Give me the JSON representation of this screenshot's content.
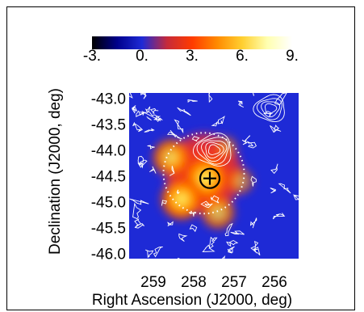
{
  "chart_data": {
    "type": "heatmap",
    "title": "",
    "colorbar": {
      "ticks": [
        "-3.",
        "0.",
        "3.",
        "6.",
        "9."
      ],
      "range": [
        -3,
        9
      ],
      "colors": [
        "#000000",
        "#00008b",
        "#1e2ad6",
        "#c62a3a",
        "#ff3b00",
        "#ff8a00",
        "#ffcf30",
        "#ffffb0",
        "#ffffff"
      ]
    },
    "xlabel": "Right Ascension (J2000, deg)",
    "ylabel": "Declination (J2000, deg)",
    "x_ticks": [
      "259",
      "258",
      "257",
      "256"
    ],
    "y_ticks": [
      "-43.0",
      "-43.5",
      "-44.0",
      "-44.5",
      "-45.0",
      "-45.5",
      "-46.0"
    ],
    "xlim": [
      259.6,
      255.4
    ],
    "ylim": [
      -46.1,
      -42.9
    ],
    "marker": {
      "ra": 257.6,
      "dec": -44.55,
      "symbol": "circled-plus"
    },
    "source_region_circle": {
      "ra": 257.75,
      "dec": -44.45,
      "radius_deg": 1.0,
      "style": "dotted"
    },
    "emission_peaks": [
      {
        "ra": 258.55,
        "dec": -44.15,
        "value": 7.5
      },
      {
        "ra": 257.7,
        "dec": -44.55,
        "value": 8.5
      },
      {
        "ra": 258.3,
        "dec": -44.95,
        "value": 8.0
      },
      {
        "ra": 257.4,
        "dec": -45.2,
        "value": 7.0
      },
      {
        "ra": 256.85,
        "dec": -44.6,
        "value": 6.0
      },
      {
        "ra": 257.2,
        "dec": -43.95,
        "value": 5.5
      }
    ],
    "background_level": 0.5,
    "contours": {
      "color": "#ffffff",
      "sources": [
        {
          "ra": 257.5,
          "dec": -44.0,
          "levels": 5
        },
        {
          "ra": 256.1,
          "dec": -43.2,
          "levels": 4
        }
      ]
    }
  }
}
